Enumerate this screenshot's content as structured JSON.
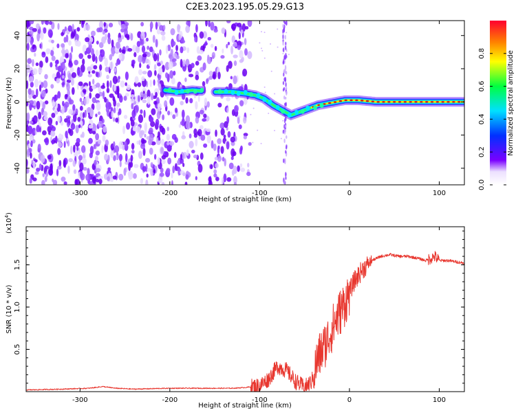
{
  "title": "C2E3.2023.195.05.29.G13",
  "colors": {
    "snr_line": "#e8372f",
    "axis": "#000000",
    "ridge_core": "#d81b1b"
  },
  "chart_data": [
    {
      "type": "heatmap",
      "name": "spectrogram",
      "xlabel": "Height of straight line (km)",
      "ylabel": "Frequency (Hz)",
      "xlim": [
        -360,
        128
      ],
      "ylim": [
        -50,
        49
      ],
      "xticks": [
        -300,
        -200,
        -100,
        0,
        100
      ],
      "xtick_labels": [
        "-300",
        "-200",
        "-100",
        "0",
        "100"
      ],
      "yticks": [
        -40,
        -20,
        0,
        20,
        40
      ],
      "ytick_labels": [
        "-40",
        "-20",
        "0",
        "20",
        "40"
      ],
      "colorbar": {
        "label": "Normalized spectral amplitude",
        "range": [
          0,
          1
        ],
        "ticks": [
          0.0,
          0.2,
          0.4,
          0.6,
          0.8
        ],
        "tick_labels": [
          "0.0",
          "0.2",
          "0.4",
          "0.6",
          "0.8"
        ],
        "colormap": [
          "#ffffff",
          "#7a00ff",
          "#0030ff",
          "#00e0ff",
          "#00ff40",
          "#ffff00",
          "#ff8000",
          "#ff0030"
        ]
      },
      "ridge": {
        "x": [
          -205,
          -190,
          -175,
          -150,
          -130,
          -115,
          -105,
          -95,
          -85,
          -75,
          -65,
          -55,
          -45,
          -35,
          -25,
          -15,
          -5,
          10,
          30,
          60,
          90,
          128
        ],
        "y": [
          7,
          6,
          7,
          6,
          6,
          5,
          4,
          2,
          -2,
          -5,
          -8,
          -6,
          -4,
          -2,
          -1,
          0,
          1,
          1,
          0,
          0,
          0,
          0
        ]
      }
    },
    {
      "type": "line",
      "name": "snr",
      "xlabel": "Height of straight line (km)",
      "ylabel": "SNR (10 * v/v)",
      "axis_multiplier": "(x10",
      "axis_multiplier_exp": "4",
      "axis_multiplier_close": ")",
      "xlim": [
        -360,
        128
      ],
      "ylim": [
        0,
        1.95
      ],
      "xticks": [
        -300,
        -200,
        -100,
        0,
        100
      ],
      "xtick_labels": [
        "-300",
        "-200",
        "-100",
        "0",
        "100"
      ],
      "yticks": [
        0.5,
        1.0,
        1.5
      ],
      "ytick_labels": [
        "0.5",
        "1.0",
        "1.5"
      ],
      "x": [
        -360,
        -320,
        -290,
        -275,
        -260,
        -240,
        -200,
        -160,
        -130,
        -115,
        -100,
        -90,
        -80,
        -70,
        -60,
        -50,
        -42,
        -35,
        -25,
        -15,
        -5,
        5,
        15,
        25,
        35,
        45,
        55,
        65,
        75,
        85,
        95,
        100,
        110,
        128
      ],
      "y": [
        0.02,
        0.03,
        0.04,
        0.06,
        0.04,
        0.03,
        0.04,
        0.04,
        0.04,
        0.05,
        0.07,
        0.15,
        0.3,
        0.25,
        0.12,
        0.05,
        0.12,
        0.4,
        0.6,
        0.85,
        1.05,
        1.3,
        1.45,
        1.55,
        1.6,
        1.62,
        1.6,
        1.6,
        1.58,
        1.55,
        1.6,
        1.55,
        1.55,
        1.52
      ]
    }
  ]
}
